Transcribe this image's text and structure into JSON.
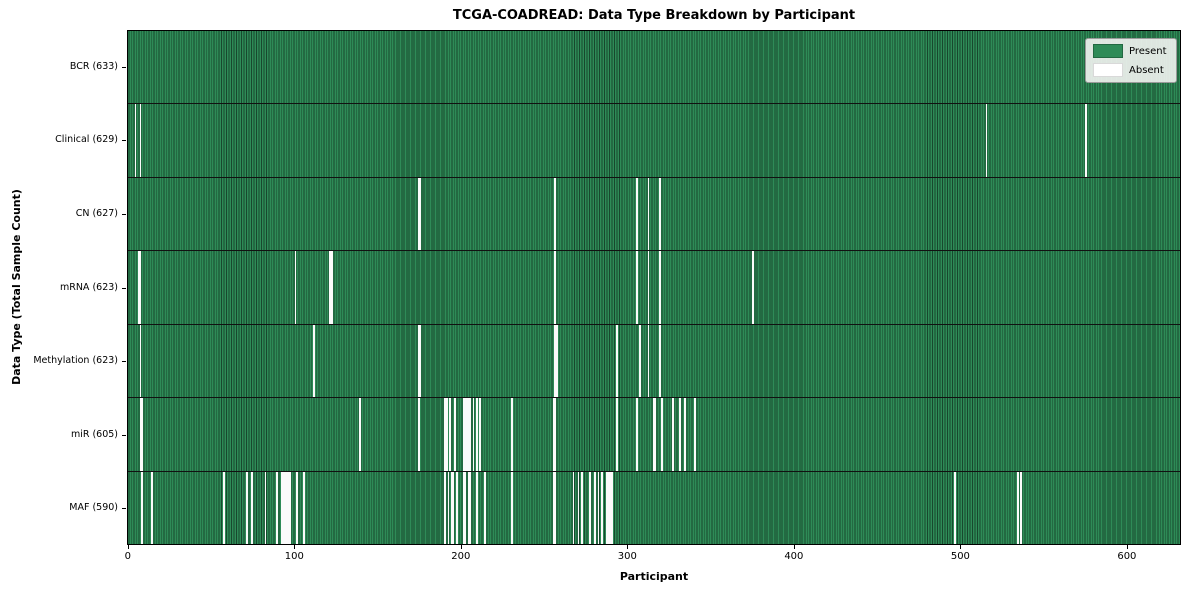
{
  "title": "TCGA-COADREAD: Data Type Breakdown by Participant",
  "legend": {
    "present_label": "Present",
    "absent_label": "Absent"
  },
  "colors": {
    "present": "#2e8b57",
    "absent": "#ffffff",
    "plot_border": "#000000",
    "legend_bg": "#edf0ed"
  },
  "chart_data": {
    "type": "heatmap",
    "title": "TCGA-COADREAD: Data Type Breakdown by Participant",
    "xlabel": "Participant",
    "ylabel": "Data Type (Total Sample Count)",
    "legend": [
      "Present",
      "Absent"
    ],
    "legend_position": "upper right",
    "n_participants": 633,
    "x_range": [
      0,
      633
    ],
    "x_ticks": [
      0,
      100,
      200,
      300,
      400,
      500,
      600
    ],
    "rows": [
      {
        "name": "BCR",
        "label": "BCR (633)",
        "total": 633,
        "absent_participants": []
      },
      {
        "name": "Clinical",
        "label": "Clinical (629)",
        "total": 629,
        "absent_participants": [
          4,
          7,
          515,
          575
        ]
      },
      {
        "name": "CN",
        "label": "CN (627)",
        "total": 627,
        "absent_participants": [
          174,
          175,
          256,
          305,
          312,
          319
        ]
      },
      {
        "name": "mRNA",
        "label": "mRNA (623)",
        "total": 623,
        "absent_participants": [
          6,
          7,
          100,
          121,
          122,
          256,
          305,
          312,
          319,
          375
        ]
      },
      {
        "name": "Methylation",
        "label": "Methylation (623)",
        "total": 623,
        "absent_participants": [
          7,
          111,
          174,
          175,
          256,
          257,
          293,
          307,
          312,
          319
        ]
      },
      {
        "name": "miR",
        "label": "miR (605)",
        "total": 605,
        "absent_participants": [
          7,
          8,
          139,
          174,
          190,
          191,
          193,
          196,
          201,
          202,
          203,
          204,
          205,
          207,
          209,
          211,
          230,
          255,
          256,
          293,
          305,
          315,
          316,
          320,
          327,
          331,
          334,
          340
        ]
      },
      {
        "name": "MAF",
        "label": "MAF (590)",
        "total": 590,
        "absent_participants": [
          8,
          14,
          57,
          71,
          74,
          82,
          89,
          92,
          93,
          94,
          95,
          96,
          97,
          101,
          105,
          190,
          192,
          194,
          195,
          197,
          201,
          202,
          204,
          205,
          209,
          214,
          230,
          255,
          256,
          267,
          270,
          272,
          277,
          280,
          282,
          284,
          287,
          288,
          289,
          290,
          496,
          534,
          536
        ]
      }
    ]
  }
}
